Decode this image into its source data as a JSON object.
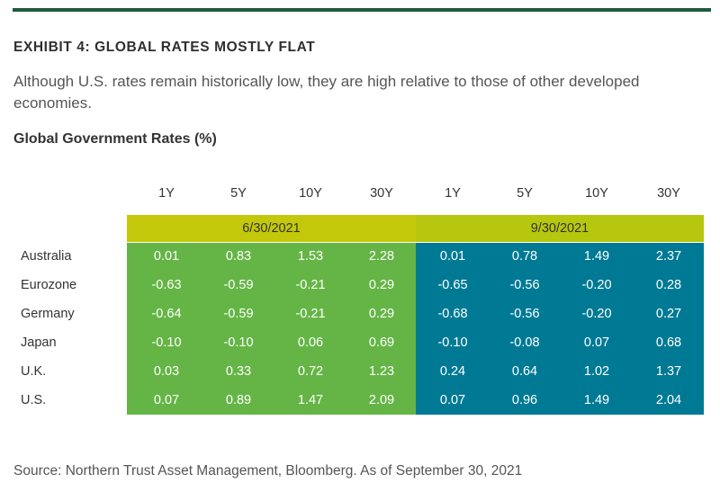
{
  "header": {
    "exhibit_title": "EXHIBIT 4: GLOBAL RATES MOSTLY FLAT",
    "subtitle": "Although U.S. rates remain historically low, they are high relative to those of other developed economies.",
    "table_title": "Global Government Rates (%)"
  },
  "colors": {
    "top_bar": "#1e5a3c",
    "date_band": "#c3c90a",
    "block_2021_06": "#65b546",
    "block_2021_09": "#007a94"
  },
  "chart_data": {
    "type": "table",
    "title": "Global Government Rates (%)",
    "date_groups": [
      "6/30/2021",
      "9/30/2021"
    ],
    "tenors": [
      "1Y",
      "5Y",
      "10Y",
      "30Y",
      "1Y",
      "5Y",
      "10Y",
      "30Y"
    ],
    "rows": [
      {
        "country": "Australia",
        "values": [
          "0.01",
          "0.83",
          "1.53",
          "2.28",
          "0.01",
          "0.78",
          "1.49",
          "2.37"
        ]
      },
      {
        "country": "Eurozone",
        "values": [
          "-0.63",
          "-0.59",
          "-0.21",
          "0.29",
          "-0.65",
          "-0.56",
          "-0.20",
          "0.28"
        ]
      },
      {
        "country": "Germany",
        "values": [
          "-0.64",
          "-0.59",
          "-0.21",
          "0.29",
          "-0.68",
          "-0.56",
          "-0.20",
          "0.27"
        ]
      },
      {
        "country": "Japan",
        "values": [
          "-0.10",
          "-0.10",
          "0.06",
          "0.69",
          "-0.10",
          "-0.08",
          "0.07",
          "0.68"
        ]
      },
      {
        "country": "U.K.",
        "values": [
          "0.03",
          "0.33",
          "0.72",
          "1.23",
          "0.24",
          "0.64",
          "1.02",
          "1.37"
        ]
      },
      {
        "country": "U.S.",
        "values": [
          "0.07",
          "0.89",
          "1.47",
          "2.09",
          "0.07",
          "0.96",
          "1.49",
          "2.04"
        ]
      }
    ]
  },
  "footer": {
    "source": "Source: Northern Trust Asset Management, Bloomberg. As of September 30, 2021"
  }
}
